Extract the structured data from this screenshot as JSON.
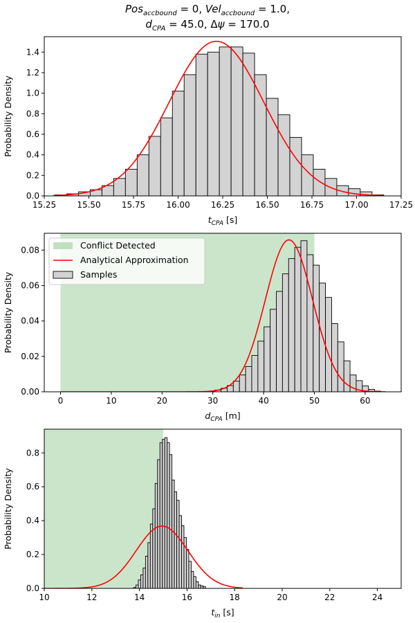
{
  "figure_title": {
    "line1": "Pos_accbound = 0, Vel_accbound = 1.0,",
    "line2": "d_CPA = 45.0, Δψ = 170.0"
  },
  "colors": {
    "hist_fill": "#d3d3d3",
    "hist_edge": "#000000",
    "curve": "#ff0000",
    "conflict_fill": "#a9d3a9"
  },
  "chart_data": [
    {
      "type": "histogram",
      "xlabel": "t_CPA [s]",
      "ylabel": "Probability Density",
      "xlim": [
        15.25,
        17.25
      ],
      "ylim": [
        0,
        1.55
      ],
      "xticks": [
        "15.25",
        "15.50",
        "15.75",
        "16.00",
        "16.25",
        "16.50",
        "16.75",
        "17.00",
        "17.25"
      ],
      "yticks": [
        "0.0",
        "0.2",
        "0.4",
        "0.6",
        "0.8",
        "1.0",
        "1.2",
        "1.4"
      ],
      "bins": {
        "start": 15.31,
        "width": 0.0658,
        "density": [
          0.01,
          0.02,
          0.04,
          0.06,
          0.1,
          0.17,
          0.26,
          0.4,
          0.58,
          0.76,
          1.02,
          1.18,
          1.38,
          1.4,
          1.45,
          1.45,
          1.39,
          1.18,
          0.95,
          0.79,
          0.57,
          0.4,
          0.26,
          0.17,
          0.1,
          0.07,
          0.04,
          0.01
        ]
      },
      "curve": {
        "name": "Analytical Approximation",
        "mean": 16.215,
        "sd": 0.265,
        "x_range": [
          15.3,
          17.15
        ]
      },
      "conflict": null,
      "legend": null
    },
    {
      "type": "histogram",
      "xlabel": "d_CPA [m]",
      "ylabel": "Probability Density",
      "xlim": [
        -3.2,
        67.1
      ],
      "ylim": [
        0,
        0.0895
      ],
      "xticks": [
        "0",
        "10",
        "20",
        "30",
        "40",
        "50",
        "60"
      ],
      "yticks": [
        "0.00",
        "0.02",
        "0.04",
        "0.06",
        "0.08"
      ],
      "bins": {
        "start": 29.2,
        "width": 1.21,
        "density": [
          0.0004,
          0.001,
          0.002,
          0.0035,
          0.006,
          0.0095,
          0.0143,
          0.0205,
          0.0286,
          0.0367,
          0.0466,
          0.0567,
          0.0666,
          0.0752,
          0.0816,
          0.0853,
          0.0774,
          0.0715,
          0.0614,
          0.0533,
          0.0385,
          0.0282,
          0.0175,
          0.0095,
          0.0063,
          0.0033,
          0.0014,
          0.0004
        ]
      },
      "curve": {
        "name": "Analytical Approximation",
        "mean": 45.0,
        "sd": 4.65,
        "x_range": [
          0,
          64
        ]
      },
      "conflict": {
        "from": 0,
        "to": 50
      },
      "legend": {
        "position": "upper-left",
        "entries": [
          "Conflict Detected",
          "Analytical Approximation",
          "Samples"
        ]
      }
    },
    {
      "type": "histogram",
      "xlabel": "t_in [s]",
      "ylabel": "Probability Density",
      "xlim": [
        10,
        25
      ],
      "ylim": [
        0,
        0.94
      ],
      "xticks": [
        "10",
        "12",
        "14",
        "16",
        "18",
        "20",
        "22",
        "24"
      ],
      "yticks": [
        "0.0",
        "0.2",
        "0.4",
        "0.6",
        "0.8"
      ],
      "bins": {
        "start": 13.75,
        "width": 0.101,
        "density": [
          0.005,
          0.02,
          0.05,
          0.08,
          0.12,
          0.19,
          0.27,
          0.38,
          0.47,
          0.62,
          0.76,
          0.86,
          0.88,
          0.89,
          0.86,
          0.79,
          0.64,
          0.57,
          0.52,
          0.43,
          0.37,
          0.3,
          0.23,
          0.16,
          0.1,
          0.07,
          0.04,
          0.02,
          0.015,
          0.01
        ]
      },
      "curve": {
        "name": "Analytical Approximation",
        "mean": 14.95,
        "sd": 1.085,
        "x_range": [
          10,
          18.35
        ]
      },
      "conflict": {
        "from": 10,
        "to": 15
      },
      "legend": null
    }
  ]
}
